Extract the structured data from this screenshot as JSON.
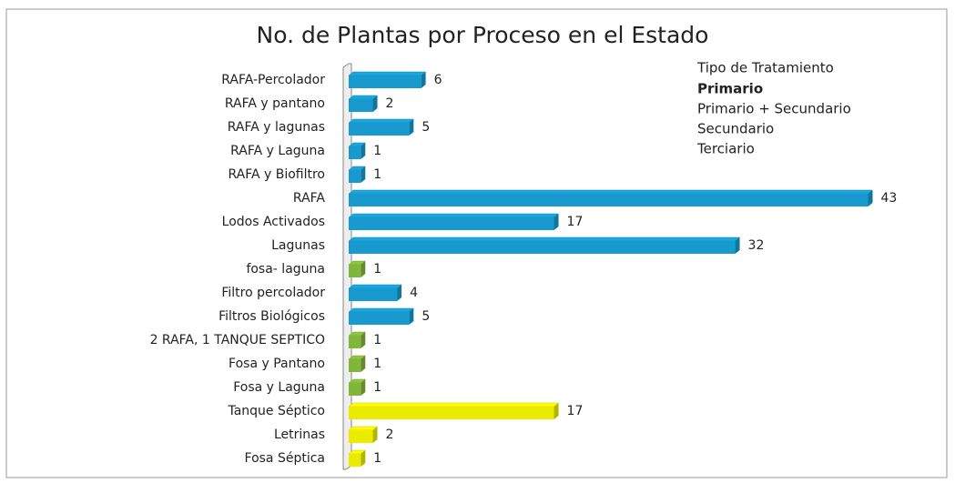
{
  "chart_data": {
    "type": "bar",
    "orientation": "horizontal",
    "title": "No. de Plantas por Proceso en el Estado",
    "legend_title": "Tipo de Tratamiento",
    "legend_position": "upper right",
    "categories": [
      "RAFA-Percolador",
      "RAFA y pantano",
      "RAFA y lagunas",
      "RAFA y Laguna",
      "RAFA y Biofiltro",
      "RAFA",
      "Lodos Activados",
      "Lagunas",
      "fosa- laguna",
      "Filtro percolador",
      "Filtros Biológicos",
      "2 RAFA, 1 TANQUE SEPTICO",
      "Fosa y Pantano",
      "Fosa y Laguna",
      "Tanque Séptico",
      "Letrinas",
      "Fosa Séptica"
    ],
    "series": [
      {
        "name": "Primario",
        "color": "#ffff00",
        "values": [
          null,
          null,
          null,
          null,
          null,
          null,
          null,
          null,
          null,
          null,
          null,
          null,
          null,
          null,
          17,
          2,
          1
        ]
      },
      {
        "name": "Primario + Secundario",
        "color": "#8dc63f",
        "values": [
          null,
          null,
          null,
          null,
          null,
          null,
          null,
          null,
          1,
          null,
          null,
          1,
          1,
          1,
          null,
          null,
          null
        ]
      },
      {
        "name": "Secundario",
        "color": "#1aa7e0",
        "values": [
          6,
          2,
          5,
          1,
          1,
          43,
          17,
          32,
          null,
          4,
          5,
          null,
          null,
          null,
          null,
          null,
          null
        ]
      },
      {
        "name": "Terciario",
        "color": "#f5c242",
        "values": [
          null,
          null,
          null,
          null,
          null,
          null,
          null,
          null,
          null,
          null,
          null,
          null,
          null,
          null,
          null,
          null,
          null
        ]
      }
    ],
    "xlim": [
      0,
      45
    ]
  }
}
